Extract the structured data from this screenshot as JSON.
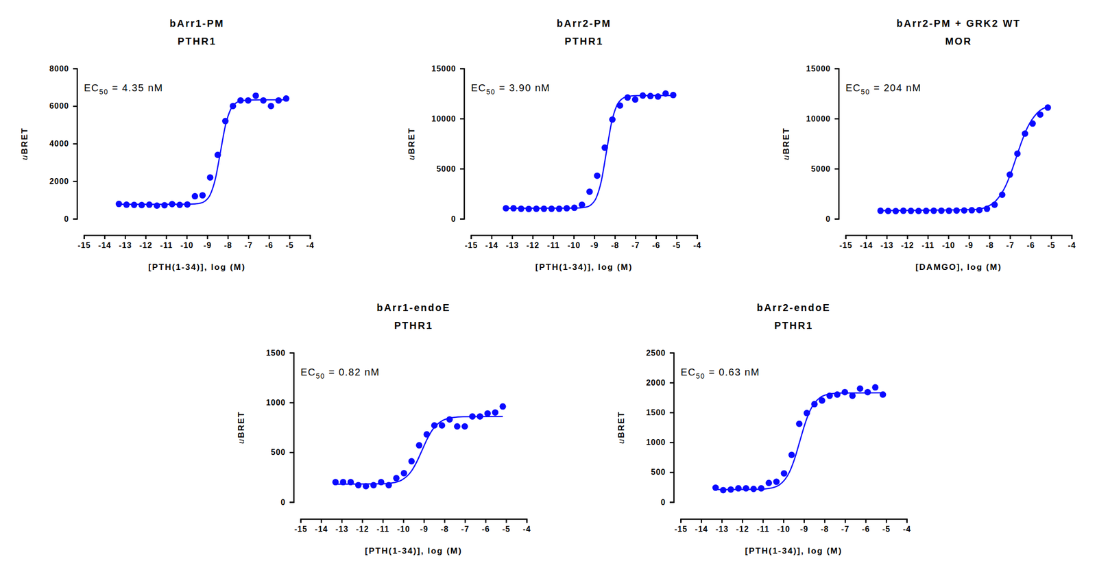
{
  "chart_data": [
    {
      "type": "scatter",
      "title": "bArr1-PM",
      "subtitle": "PTHR1",
      "annotation": "EC50 = 4.35 nM",
      "x_label": "[PTH(1-34)], log (M)",
      "y_label": "uBRET",
      "xlim": [
        -15,
        -4
      ],
      "xticks": [
        -15,
        -14,
        -13,
        -12,
        -11,
        -10,
        -9,
        -8,
        -7,
        -6,
        -5,
        -4
      ],
      "ylim": [
        0,
        8000
      ],
      "yticks": [
        0,
        2000,
        4000,
        6000,
        8000
      ],
      "series": [
        {
          "type": "scatter",
          "marker": "circle",
          "color": "#0a0aff",
          "x": [
            -13.3,
            -12.93,
            -12.56,
            -12.19,
            -11.82,
            -11.45,
            -11.08,
            -10.71,
            -10.34,
            -9.97,
            -9.6,
            -9.23,
            -8.86,
            -8.49,
            -8.12,
            -7.75,
            -7.38,
            -7.01,
            -6.64,
            -6.27,
            -5.9,
            -5.53,
            -5.16
          ],
          "values": [
            790,
            750,
            740,
            730,
            750,
            700,
            720,
            780,
            740,
            760,
            1200,
            1250,
            2200,
            3400,
            5200,
            6000,
            6300,
            6300,
            6550,
            6300,
            6000,
            6300,
            6400
          ]
        },
        {
          "type": "line",
          "color": "#0a0aff",
          "x": [
            -13.3,
            -9.86,
            -9.36,
            -9.11,
            -8.86,
            -8.61,
            -8.36,
            -8.11,
            -7.86,
            -7.61,
            -7.36,
            -6.86,
            -5.16
          ],
          "values": [
            770,
            776,
            825,
            941,
            1275,
            2104,
            3550,
            4996,
            5825,
            6159,
            6275,
            6324,
            6330
          ]
        }
      ]
    },
    {
      "type": "scatter",
      "title": "bArr2-PM",
      "subtitle": "PTHR1",
      "annotation": "EC50 = 3.90 nM",
      "x_label": "[PTH(1-34)], log (M)",
      "y_label": "uBRET",
      "xlim": [
        -15,
        -4
      ],
      "xticks": [
        -15,
        -14,
        -13,
        -12,
        -11,
        -10,
        -9,
        -8,
        -7,
        -6,
        -5,
        -4
      ],
      "ylim": [
        0,
        15000
      ],
      "yticks": [
        0,
        5000,
        10000,
        15000
      ],
      "series": [
        {
          "type": "scatter",
          "marker": "circle",
          "color": "#0a0aff",
          "x": [
            -13.3,
            -12.93,
            -12.56,
            -12.19,
            -11.82,
            -11.45,
            -11.08,
            -10.71,
            -10.34,
            -9.97,
            -9.6,
            -9.23,
            -8.86,
            -8.49,
            -8.12,
            -7.75,
            -7.38,
            -7.01,
            -6.64,
            -6.27,
            -5.9,
            -5.53,
            -5.16
          ],
          "values": [
            1050,
            1050,
            1000,
            980,
            1000,
            1000,
            1000,
            1000,
            1050,
            1100,
            1400,
            2700,
            4300,
            7100,
            9900,
            11300,
            12100,
            11900,
            12300,
            12250,
            12200,
            12500,
            12350
          ]
        },
        {
          "type": "line",
          "color": "#0a0aff",
          "x": [
            -13.3,
            -9.91,
            -9.41,
            -9.16,
            -8.91,
            -8.66,
            -8.41,
            -8.16,
            -7.91,
            -7.66,
            -7.41,
            -6.91,
            -5.16
          ],
          "values": [
            1050,
            1061,
            1161,
            1395,
            2073,
            3750,
            6675,
            9600,
            11277,
            11951,
            12188,
            12289,
            12300
          ]
        }
      ]
    },
    {
      "type": "scatter",
      "title": "bArr2-PM + GRK2 WT",
      "subtitle": "MOR",
      "annotation": "EC50 = 204 nM",
      "x_label": "[DAMGO], log (M)",
      "y_label": "uBRET",
      "xlim": [
        -15,
        -4
      ],
      "xticks": [
        -15,
        -14,
        -13,
        -12,
        -11,
        -10,
        -9,
        -8,
        -7,
        -6,
        -5,
        -4
      ],
      "ylim": [
        0,
        15000
      ],
      "yticks": [
        0,
        5000,
        10000,
        15000
      ],
      "series": [
        {
          "type": "scatter",
          "marker": "circle",
          "color": "#0a0aff",
          "x": [
            -13.3,
            -12.93,
            -12.56,
            -12.19,
            -11.82,
            -11.45,
            -11.08,
            -10.71,
            -10.34,
            -9.97,
            -9.6,
            -9.23,
            -8.86,
            -8.49,
            -8.12,
            -7.75,
            -7.38,
            -7.01,
            -6.64,
            -6.27,
            -5.9,
            -5.53,
            -5.16
          ],
          "values": [
            800,
            780,
            770,
            800,
            790,
            780,
            790,
            800,
            810,
            800,
            820,
            830,
            850,
            870,
            1000,
            1400,
            2400,
            4400,
            6500,
            8500,
            9500,
            10400,
            11100
          ]
        },
        {
          "type": "line",
          "color": "#0a0aff",
          "x": [
            -13.3,
            -8.69,
            -8.19,
            -7.69,
            -7.19,
            -6.94,
            -6.69,
            -6.44,
            -6.19,
            -5.69,
            -5.16
          ],
          "values": [
            820,
            926,
            1148,
            1791,
            3383,
            4665,
            6160,
            7655,
            8937,
            10528,
            11190
          ]
        }
      ]
    },
    {
      "type": "scatter",
      "title": "bArr1-endoE",
      "subtitle": "PTHR1",
      "annotation": "EC50 = 0.82 nM",
      "x_label": "[PTH(1-34)], log (M)",
      "y_label": "uBRET",
      "xlim": [
        -15,
        -4
      ],
      "xticks": [
        -15,
        -14,
        -13,
        -12,
        -11,
        -10,
        -9,
        -8,
        -7,
        -6,
        -5,
        -4
      ],
      "ylim": [
        0,
        1500
      ],
      "yticks": [
        0,
        500,
        1000,
        1500
      ],
      "series": [
        {
          "type": "scatter",
          "marker": "circle",
          "color": "#0a0aff",
          "x": [
            -13.3,
            -12.93,
            -12.56,
            -12.19,
            -11.82,
            -11.45,
            -11.08,
            -10.71,
            -10.34,
            -9.97,
            -9.6,
            -9.23,
            -8.86,
            -8.49,
            -8.12,
            -7.75,
            -7.38,
            -7.01,
            -6.64,
            -6.27,
            -5.9,
            -5.53,
            -5.16
          ],
          "values": [
            200,
            200,
            200,
            170,
            160,
            170,
            200,
            170,
            240,
            290,
            410,
            570,
            680,
            770,
            770,
            830,
            760,
            760,
            860,
            860,
            890,
            900,
            960
          ]
        },
        {
          "type": "line",
          "color": "#0a0aff",
          "x": [
            -13.3,
            -11.09,
            -10.59,
            -10.09,
            -9.59,
            -9.34,
            -9.09,
            -8.84,
            -8.59,
            -8.09,
            -7.59,
            -7.09,
            -5.16
          ],
          "values": [
            180,
            183,
            191,
            220,
            316,
            407,
            520,
            633,
            724,
            819,
            849,
            857,
            860
          ]
        }
      ]
    },
    {
      "type": "scatter",
      "title": "bArr2-endoE",
      "subtitle": "PTHR1",
      "annotation": "EC50 = 0.63 nM",
      "x_label": "[PTH(1-34)], log (M)",
      "y_label": "uBRET",
      "xlim": [
        -15,
        -4
      ],
      "xticks": [
        -15,
        -14,
        -13,
        -12,
        -11,
        -10,
        -9,
        -8,
        -7,
        -6,
        -5,
        -4
      ],
      "ylim": [
        0,
        2500
      ],
      "yticks": [
        0,
        500,
        1000,
        1500,
        2000,
        2500
      ],
      "series": [
        {
          "type": "scatter",
          "marker": "circle",
          "color": "#0a0aff",
          "x": [
            -13.3,
            -12.93,
            -12.56,
            -12.19,
            -11.82,
            -11.45,
            -11.08,
            -10.71,
            -10.34,
            -9.97,
            -9.6,
            -9.23,
            -8.86,
            -8.49,
            -8.12,
            -7.75,
            -7.38,
            -7.01,
            -6.64,
            -6.27,
            -5.9,
            -5.53,
            -5.16
          ],
          "values": [
            240,
            200,
            210,
            230,
            230,
            220,
            230,
            320,
            340,
            480,
            790,
            1310,
            1490,
            1640,
            1700,
            1780,
            1800,
            1840,
            1780,
            1900,
            1840,
            1920,
            1800
          ]
        },
        {
          "type": "line",
          "color": "#0a0aff",
          "x": [
            -13.3,
            -11.2,
            -10.7,
            -10.2,
            -9.7,
            -9.45,
            -9.2,
            -8.95,
            -8.7,
            -8.2,
            -7.7,
            -7.2,
            -5.16
          ],
          "values": [
            210,
            214,
            228,
            287,
            506,
            730,
            1020,
            1310,
            1534,
            1752,
            1812,
            1826,
            1830
          ]
        }
      ]
    }
  ]
}
